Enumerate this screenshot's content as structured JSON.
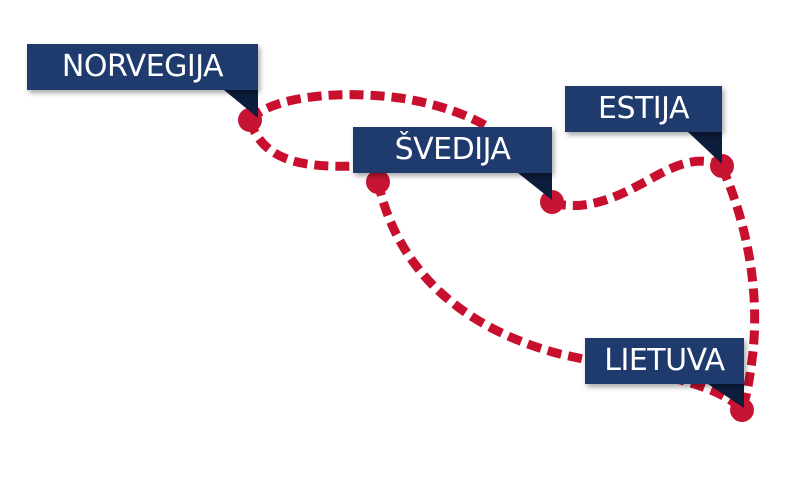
{
  "colors": {
    "route": "#c8102e",
    "route_dot": "#c51532",
    "label_bg": "#1f3a6d",
    "label_fold": "#0d1d3c",
    "label_text": "#ffffff",
    "background": "#ffffff"
  },
  "stops": [
    {
      "id": "norvegija",
      "label": "NORVEGIJA"
    },
    {
      "id": "svedija",
      "label": "ŠVEDIJA"
    },
    {
      "id": "estija",
      "label": "ESTIJA"
    },
    {
      "id": "lietuva",
      "label": "LIETUVA"
    }
  ],
  "route_style": "dashed"
}
